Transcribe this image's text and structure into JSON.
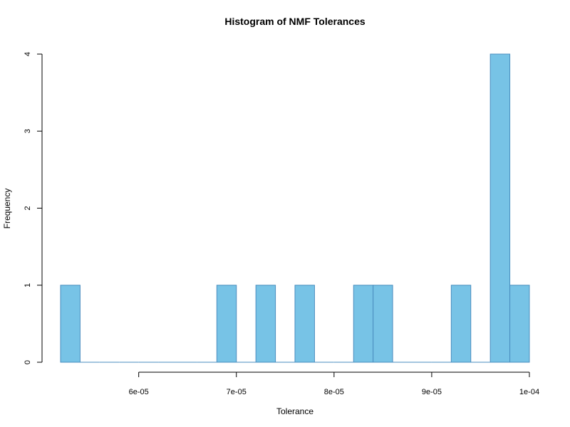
{
  "chart_data": {
    "type": "bar",
    "title": "Histogram of NMF Tolerances",
    "xlabel": "Tolerance",
    "ylabel": "Frequency",
    "bin_width": 2e-06,
    "bins_start": [
      5.2e-05,
      5.4e-05,
      5.6e-05,
      5.8e-05,
      6e-05,
      6.2e-05,
      6.4e-05,
      6.6e-05,
      6.8e-05,
      7e-05,
      7.2e-05,
      7.4e-05,
      7.6e-05,
      7.8e-05,
      8e-05,
      8.2e-05,
      8.4e-05,
      8.6e-05,
      8.8e-05,
      9e-05,
      9.2e-05,
      9.4e-05,
      9.6e-05,
      9.8e-05
    ],
    "values": [
      1,
      0,
      0,
      0,
      0,
      0,
      0,
      0,
      1,
      0,
      1,
      0,
      1,
      0,
      0,
      1,
      1,
      0,
      0,
      0,
      1,
      0,
      4,
      1
    ],
    "xlim": [
      5.2e-05,
      0.0001
    ],
    "ylim": [
      0,
      4
    ],
    "x_ticks": [
      {
        "value": 6e-05,
        "label": "6e-05"
      },
      {
        "value": 7e-05,
        "label": "7e-05"
      },
      {
        "value": 8e-05,
        "label": "8e-05"
      },
      {
        "value": 9e-05,
        "label": "9e-05"
      },
      {
        "value": 0.0001,
        "label": "1e-04"
      }
    ],
    "y_ticks": [
      {
        "value": 0,
        "label": "0"
      },
      {
        "value": 1,
        "label": "1"
      },
      {
        "value": 2,
        "label": "2"
      },
      {
        "value": 3,
        "label": "3"
      },
      {
        "value": 4,
        "label": "4"
      }
    ],
    "bar_fill": "#77c3e6",
    "bar_stroke": "#4a8dbf",
    "grid": false,
    "legend": "none"
  }
}
